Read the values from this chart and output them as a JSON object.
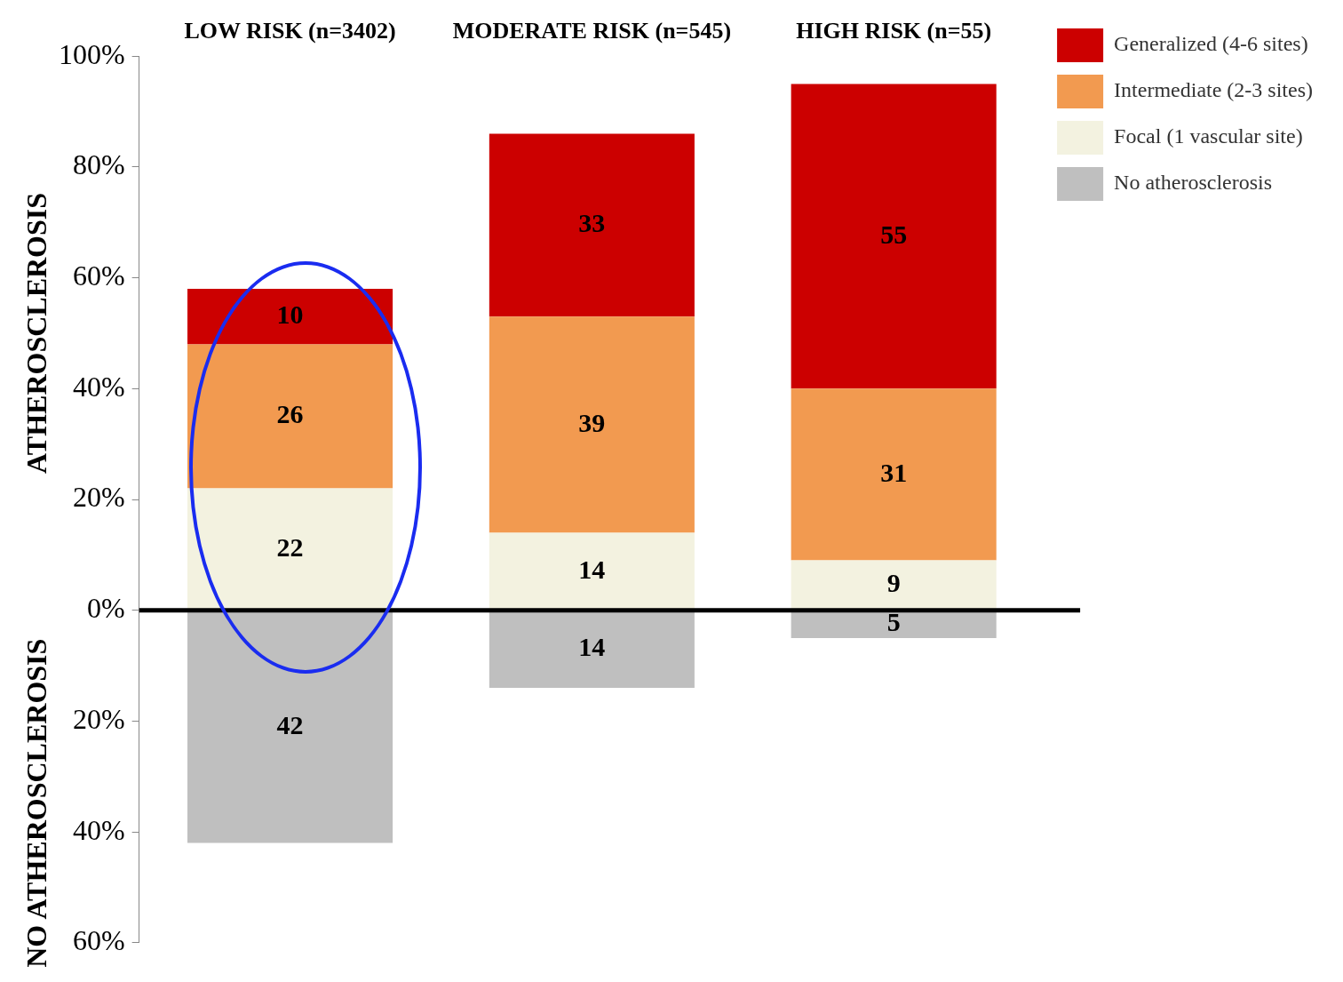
{
  "chart_data": {
    "type": "bar",
    "stacked": true,
    "ylabel": "ATHEROSCLEROSIS",
    "annotations": [
      "NO ATHEROSCLEROSIS"
    ],
    "categories": [
      "LOW RISK (n=3402)",
      "MODERATE RISK (n=545)",
      "HIGH RISK (n=55)"
    ],
    "series": [
      {
        "name": "No atherosclerosis",
        "color": "#bfbfbf",
        "values": [
          42,
          14,
          5
        ],
        "base": [
          -42,
          -14,
          -5
        ],
        "value_labels": [
          "42",
          "14",
          "5"
        ]
      },
      {
        "name": "Focal (1 vascular site)",
        "color": "#f3f2e0",
        "values": [
          22,
          14,
          9
        ],
        "value_labels": [
          "22",
          "14",
          "9"
        ]
      },
      {
        "name": "Intermediate (2-3 sites)",
        "color": "#f29a50",
        "values": [
          26,
          39,
          31
        ],
        "value_labels": [
          "26",
          "39",
          "31"
        ]
      },
      {
        "name": "Generalized (4-6 sites)",
        "color": "#cc0000",
        "values": [
          10,
          33,
          55
        ],
        "value_labels": [
          "10",
          "33",
          "55"
        ]
      }
    ],
    "ylim": [
      -60,
      100
    ],
    "yticks": [
      {
        "value": -60,
        "label": "60%"
      },
      {
        "value": -40,
        "label": "40%"
      },
      {
        "value": -20,
        "label": "20%"
      },
      {
        "value": 0,
        "label": "0%"
      },
      {
        "value": 20,
        "label": "20%"
      },
      {
        "value": 40,
        "label": "40%"
      },
      {
        "value": 60,
        "label": "60%"
      },
      {
        "value": 80,
        "label": "80%"
      },
      {
        "value": 100,
        "label": "100%"
      }
    ],
    "ref_lines": [
      {
        "axis": "y",
        "value": 0,
        "color": "#000000"
      }
    ],
    "legend": "right"
  }
}
